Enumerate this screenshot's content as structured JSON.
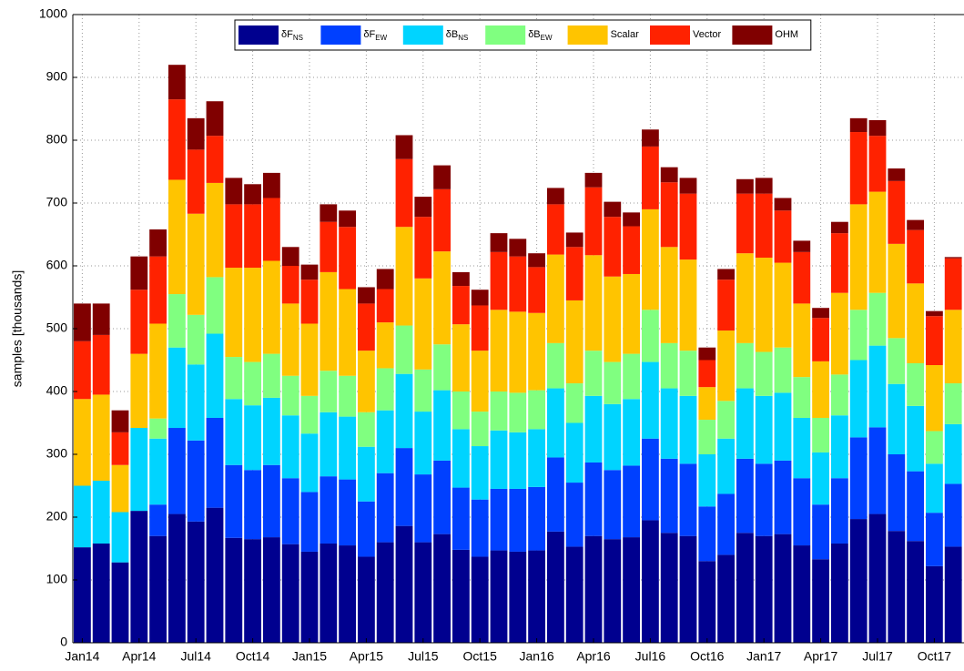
{
  "chart_data": {
    "type": "stacked-bar",
    "y_label": "samples [thousands]",
    "categories": [
      "Jan14",
      null,
      null,
      "Apr14",
      null,
      null,
      "Jul14",
      null,
      null,
      "Oct14",
      null,
      null,
      "Jan15",
      null,
      null,
      "Apr15",
      null,
      null,
      "Jul15",
      null,
      null,
      "Oct15",
      null,
      null,
      "Jan16",
      null,
      null,
      "Apr16",
      null,
      null,
      "Jul16",
      null,
      null,
      "Oct16",
      null,
      null,
      "Jan17",
      null,
      null,
      "Apr17",
      null,
      null,
      "Jul17",
      null,
      null,
      "Oct17",
      null
    ],
    "ylim": [
      0,
      1000
    ],
    "yticks": [
      0,
      100,
      200,
      300,
      400,
      500,
      600,
      700,
      800,
      900,
      1000
    ],
    "grid": true,
    "series": [
      {
        "name": "δF",
        "subscript": "NS",
        "color": "#00008f",
        "values": [
          152,
          158,
          128,
          210,
          170,
          205,
          193,
          215,
          167,
          165,
          168,
          157,
          145,
          158,
          155,
          137,
          160,
          186,
          160,
          173,
          148,
          137,
          147,
          145,
          147,
          177,
          153,
          170,
          165,
          168,
          195,
          175,
          170,
          130,
          140,
          175,
          170,
          173,
          155,
          133,
          158,
          197,
          205,
          178,
          162,
          122,
          153
        ]
      },
      {
        "name": "δF",
        "subscript": "EW",
        "color": "#0040ff",
        "values": [
          0,
          0,
          0,
          0,
          50,
          137,
          129,
          143,
          116,
          110,
          115,
          105,
          95,
          107,
          105,
          88,
          110,
          124,
          108,
          117,
          99,
          91,
          98,
          100,
          101,
          118,
          102,
          117,
          110,
          114,
          130,
          118,
          115,
          87,
          97,
          118,
          115,
          117,
          107,
          87,
          104,
          130,
          138,
          122,
          111,
          85,
          100
        ]
      },
      {
        "name": "δB",
        "subscript": "NS",
        "color": "#00d4ff",
        "values": [
          98,
          100,
          80,
          132,
          105,
          128,
          121,
          134,
          105,
          103,
          107,
          100,
          93,
          102,
          100,
          87,
          100,
          118,
          100,
          112,
          93,
          85,
          93,
          90,
          92,
          110,
          95,
          106,
          105,
          106,
          122,
          112,
          108,
          83,
          88,
          112,
          108,
          108,
          96,
          83,
          100,
          123,
          130,
          112,
          104,
          78,
          95
        ]
      },
      {
        "name": "δB",
        "subscript": "EW",
        "color": "#80ff80",
        "values": [
          0,
          0,
          0,
          0,
          32,
          85,
          79,
          90,
          67,
          69,
          70,
          63,
          60,
          66,
          65,
          55,
          67,
          77,
          67,
          73,
          60,
          55,
          62,
          63,
          62,
          72,
          63,
          72,
          67,
          72,
          83,
          72,
          72,
          55,
          60,
          72,
          70,
          72,
          65,
          55,
          65,
          80,
          84,
          73,
          68,
          52,
          65
        ]
      },
      {
        "name": "Scalar",
        "color": "#ffc400",
        "values": [
          138,
          137,
          75,
          118,
          151,
          182,
          161,
          150,
          142,
          150,
          148,
          115,
          115,
          157,
          138,
          98,
          73,
          157,
          145,
          148,
          107,
          97,
          130,
          129,
          123,
          141,
          132,
          152,
          136,
          127,
          160,
          153,
          145,
          52,
          112,
          143,
          150,
          135,
          117,
          90,
          130,
          168,
          161,
          150,
          127,
          105,
          117
        ]
      },
      {
        "name": "Vector",
        "color": "#ff2200",
        "values": [
          92,
          95,
          52,
          102,
          107,
          128,
          102,
          75,
          101,
          101,
          100,
          60,
          70,
          80,
          99,
          75,
          53,
          108,
          98,
          99,
          61,
          72,
          92,
          88,
          73,
          80,
          85,
          108,
          95,
          76,
          100,
          103,
          105,
          43,
          81,
          95,
          102,
          83,
          82,
          69,
          95,
          115,
          89,
          100,
          85,
          78,
          82
        ]
      },
      {
        "name": "OHM",
        "color": "#800000",
        "values": [
          60,
          50,
          35,
          53,
          43,
          55,
          50,
          55,
          42,
          32,
          40,
          30,
          24,
          28,
          26,
          26,
          32,
          38,
          32,
          38,
          22,
          25,
          30,
          28,
          22,
          26,
          23,
          23,
          24,
          22,
          27,
          24,
          25,
          20,
          17,
          23,
          25,
          20,
          18,
          16,
          18,
          22,
          25,
          20,
          16,
          8,
          2
        ]
      }
    ]
  }
}
